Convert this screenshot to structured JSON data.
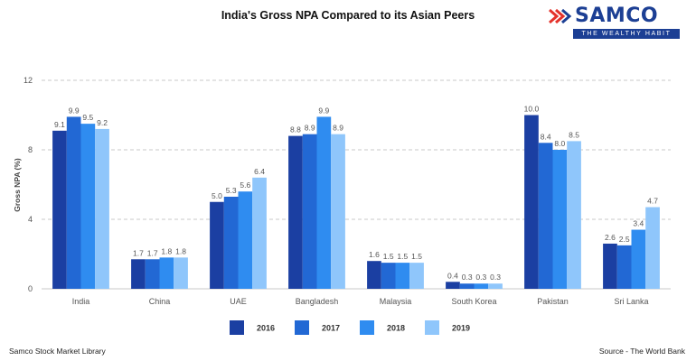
{
  "logo": {
    "brand": "SAMCO",
    "tagline": "THE WEALTHY HABIT"
  },
  "footer": {
    "left": "Samco Stock Market Library",
    "right": "Source - The World Bank"
  },
  "colors": {
    "2016": "#1b3fa2",
    "2017": "#2268d4",
    "2018": "#2f8cf0",
    "2019": "#8fc6fb",
    "brand": "#1c3f94",
    "accent": "#e4322b"
  },
  "chart_data": {
    "type": "bar",
    "title": "India's Gross NPA Compared to its Asian Peers",
    "xlabel": "",
    "ylabel": "Gross NPA (%)",
    "ylim": [
      0,
      12
    ],
    "yticks": [
      "0",
      "4",
      "8",
      "12"
    ],
    "grid": true,
    "legend_position": "bottom",
    "categories": [
      "India",
      "China",
      "UAE",
      "Bangladesh",
      "Malaysia",
      "South Korea",
      "Pakistan",
      "Sri Lanka"
    ],
    "series": [
      {
        "name": "2016",
        "values": [
          9.1,
          1.7,
          5.0,
          8.8,
          1.6,
          0.4,
          10.0,
          2.6
        ],
        "labels": [
          "9.1",
          "1.7",
          "5.0",
          "8.8",
          "1.6",
          "0.4",
          "10.0",
          "2.6"
        ]
      },
      {
        "name": "2017",
        "values": [
          9.9,
          1.7,
          5.3,
          8.9,
          1.5,
          0.3,
          8.4,
          2.5
        ],
        "labels": [
          "9.9",
          "1.7",
          "5.3",
          "8.9",
          "1.5",
          "0.3",
          "8.4",
          "2.5"
        ]
      },
      {
        "name": "2018",
        "values": [
          9.5,
          1.8,
          5.6,
          9.9,
          1.5,
          0.3,
          8.0,
          3.4
        ],
        "labels": [
          "9.5",
          "1.8",
          "5.6",
          "9.9",
          "1.5",
          "0.3",
          "8.0",
          "3.4"
        ]
      },
      {
        "name": "2019",
        "values": [
          9.2,
          1.8,
          6.4,
          8.9,
          1.5,
          0.3,
          8.5,
          4.7
        ],
        "labels": [
          "9.2",
          "1.8",
          "6.4",
          "8.9",
          "1.5",
          "0.3",
          "8.5",
          "4.7"
        ]
      }
    ]
  }
}
